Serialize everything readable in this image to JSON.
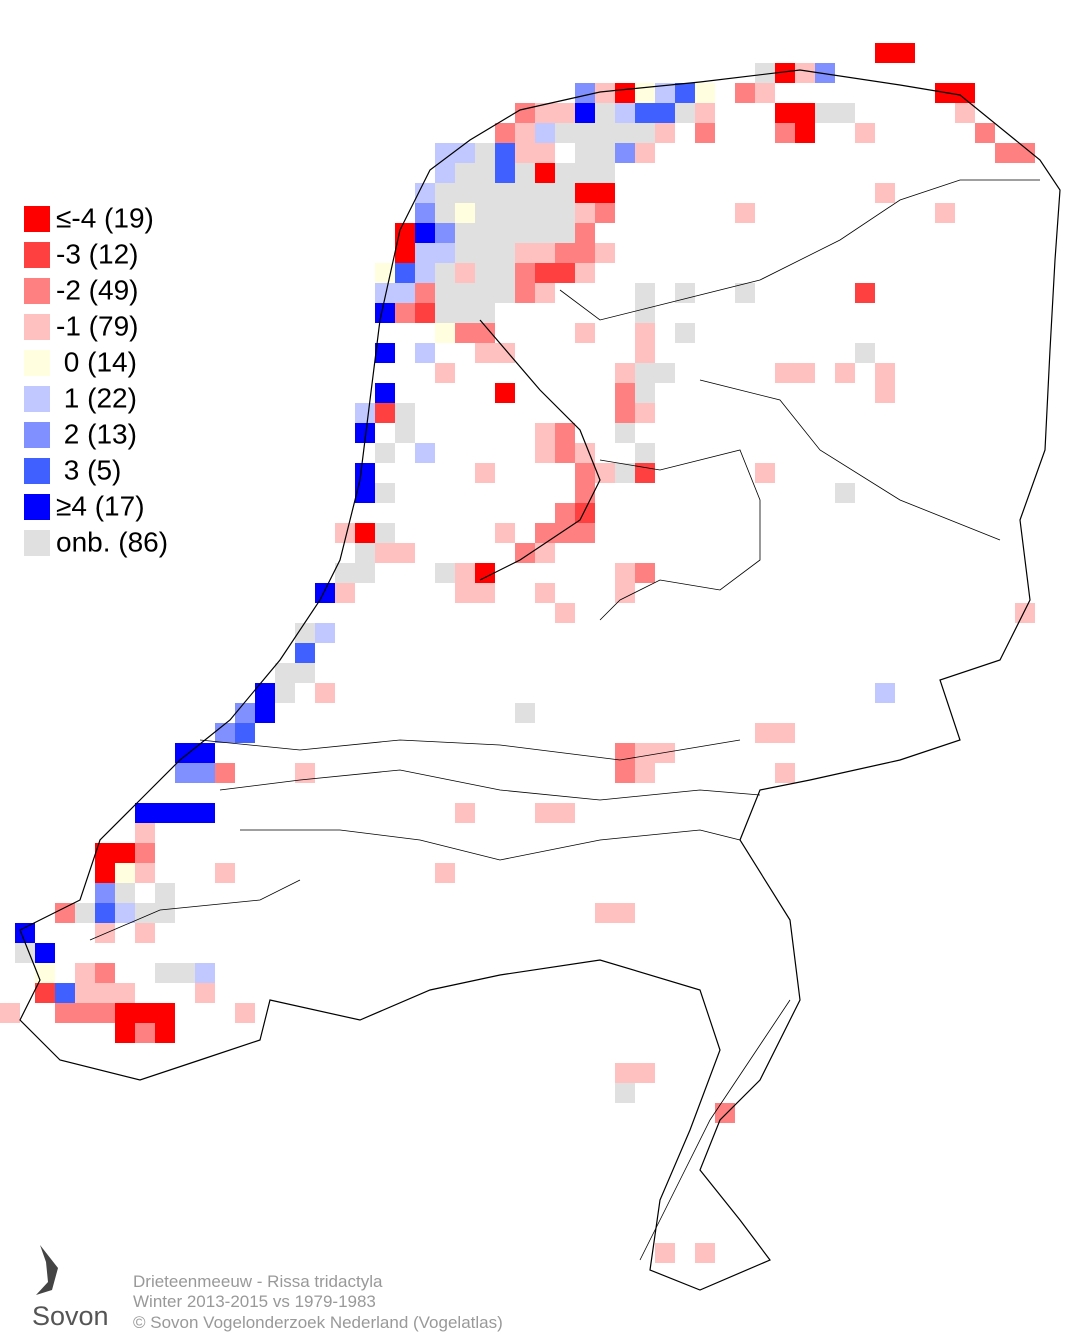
{
  "legend": {
    "entries": [
      {
        "label": "≤-4 (19)",
        "color": "#ff0000"
      },
      {
        "label": "-3 (12)",
        "color": "#ff4040"
      },
      {
        "label": "-2 (49)",
        "color": "#ff8080"
      },
      {
        "label": "-1 (79)",
        "color": "#ffc0c0"
      },
      {
        "label": " 0 (14)",
        "color": "#ffffe0"
      },
      {
        "label": " 1 (22)",
        "color": "#c0c8ff"
      },
      {
        "label": " 2 (13)",
        "color": "#8090ff"
      },
      {
        "label": " 3 (5)",
        "color": "#4060ff"
      },
      {
        "label": "≥4 (17)",
        "color": "#0000ff"
      },
      {
        "label": "onb. (86)",
        "color": "#e0e0e0"
      }
    ]
  },
  "footer": {
    "species": "Drieteenmeeuw - Rissa tridactyla",
    "period": "Winter 2013-2015 vs 1979-1983",
    "copyright": "© Sovon Vogelonderzoek Nederland (Vogelatlas)"
  },
  "logo": {
    "name": "Sovon"
  }
}
